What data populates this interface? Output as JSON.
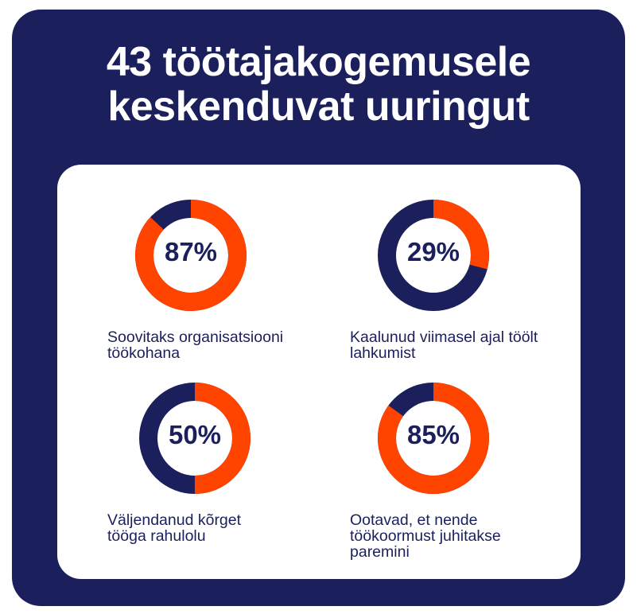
{
  "title": {
    "line1": "43 töötajakogemusele",
    "line2": "keskenduvat uuringut"
  },
  "colors": {
    "background": "#1b1f5c",
    "accent": "#ff4400",
    "card": "#ffffff"
  },
  "chart_data": {
    "type": "pie",
    "subtype": "donut",
    "title": "43 töötajakogemusele keskenduvat uuringut",
    "items": [
      {
        "value": 87,
        "display": "87%",
        "label": "Soovitaks organisatsiooni töökohana"
      },
      {
        "value": 29,
        "display": "29%",
        "label": "Kaalunud viimasel ajal töölt lahkumist"
      },
      {
        "value": 50,
        "display": "50%",
        "label": "Väljendanud kõrget tööga rahulolu"
      },
      {
        "value": 85,
        "display": "85%",
        "label": "Ootavad, et nende töökoormust juhitakse paremini"
      }
    ]
  }
}
